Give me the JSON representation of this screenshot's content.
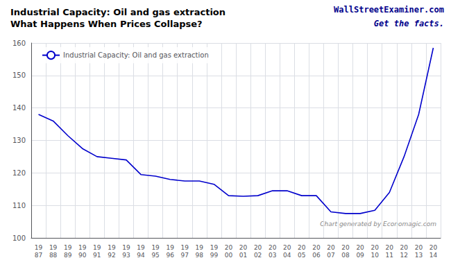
{
  "chart_data": {
    "type": "line",
    "title": "Industrial Capacity: Oil and gas extraction",
    "subtitle": "What Happens When Prices Collapse?",
    "annotations": [
      "WallStreetExaminer.com",
      "Get the facts.",
      "Chart generated by Economagic.com"
    ],
    "categories": [
      "19\n87",
      "19\n88",
      "19\n89",
      "19\n90",
      "19\n91",
      "19\n92",
      "19\n93",
      "19\n94",
      "19\n95",
      "19\n96",
      "19\n97",
      "19\n98",
      "19\n99",
      "20\n00",
      "20\n01",
      "20\n02",
      "20\n03",
      "20\n04",
      "20\n05",
      "20\n06",
      "20\n07",
      "20\n08",
      "20\n09",
      "20\n10",
      "20\n11",
      "20\n12",
      "20\n13",
      "20\n14"
    ],
    "series": [
      {
        "name": "Industrial Capacity: Oil and gas extraction",
        "color": "#0000CC",
        "values": [
          138.0,
          136.0,
          131.5,
          127.5,
          125.0,
          124.5,
          124.0,
          119.5,
          119.0,
          118.0,
          117.5,
          117.5,
          116.5,
          113.0,
          112.8,
          113.0,
          114.5,
          114.5,
          113.0,
          113.0,
          108.0,
          107.5,
          107.5,
          108.5,
          114.0,
          125.0,
          138.0,
          158.5
        ]
      }
    ],
    "ylim": [
      100,
      160
    ],
    "yticks": [
      100,
      110,
      120,
      130,
      140,
      150,
      160
    ],
    "grid": true,
    "legend": "upper left"
  }
}
